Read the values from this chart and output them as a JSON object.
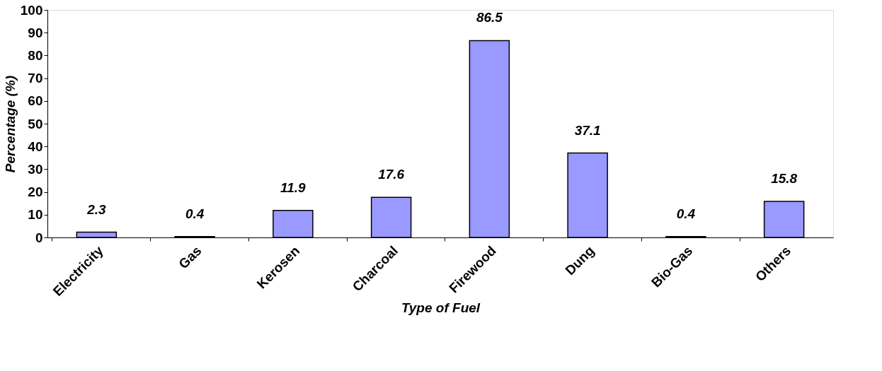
{
  "chart_data": {
    "type": "bar",
    "xlabel": "Type of Fuel",
    "ylabel": "Percentage (%)",
    "categories": [
      "Electricity",
      "Gas",
      "Kerosen",
      "Charcoal",
      "Firewood",
      "Dung",
      "Bio-Gas",
      "Others"
    ],
    "values": [
      2.3,
      0.4,
      11.9,
      17.6,
      86.5,
      37.1,
      0.4,
      15.8
    ],
    "color": "#9999ff",
    "ylim": [
      0,
      100
    ],
    "yticks": [
      0,
      10,
      20,
      30,
      40,
      50,
      60,
      70,
      80,
      90,
      100
    ],
    "grid": false,
    "data_labels": true
  }
}
